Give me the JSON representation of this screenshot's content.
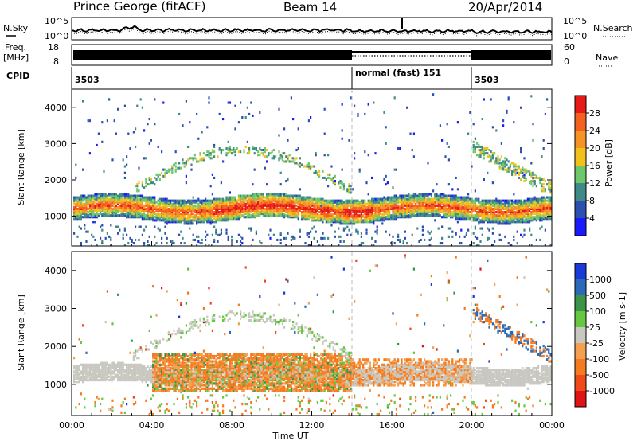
{
  "header": {
    "station": "Prince George (fitACF)",
    "beam": "Beam 14",
    "date": "20/Apr/2014"
  },
  "noise_panel": {
    "left_label": "N.Sky",
    "right_label": "N.Search",
    "left_ticks": [
      "10^5",
      "10^0"
    ],
    "right_ticks": [
      "10^5",
      "10^0"
    ]
  },
  "freq_panel": {
    "left_label_1": "Freq.",
    "left_label_2": "[MHz]",
    "left_ticks": [
      "18",
      "8"
    ],
    "right_label": "Nave",
    "right_ticks": [
      "60",
      "0"
    ]
  },
  "cpid": {
    "label": "CPID",
    "segments": [
      {
        "start_hour": 0,
        "label": "3503"
      },
      {
        "start_hour": 14,
        "label": "normal (fast) 151"
      },
      {
        "start_hour": 20,
        "label": "3503"
      }
    ]
  },
  "time_axis": {
    "label": "Time UT",
    "range_hours": [
      0,
      24
    ],
    "ticks": [
      "00:00",
      "04:00",
      "08:00",
      "12:00",
      "16:00",
      "20:00",
      "00:00"
    ]
  },
  "chart_data": [
    {
      "type": "heatmap",
      "name": "power-panel",
      "ylabel": "Slant Range [km]",
      "ylim": [
        180,
        4500
      ],
      "yticks": [
        "1000",
        "2000",
        "3000",
        "4000"
      ],
      "colorbar": {
        "label": "Power [dB]",
        "range": [
          0,
          32
        ],
        "ticks": [
          "4",
          "8",
          "12",
          "16",
          "20",
          "24",
          "28"
        ],
        "colors": [
          "#1a1aff",
          "#2c4fb2",
          "#3f8a86",
          "#6ec86a",
          "#f2c21a",
          "#f59324",
          "#f4601e",
          "#e81919"
        ]
      },
      "features": [
        {
          "region": "main-band",
          "time_hours": [
            0,
            24
          ],
          "range_km": [
            850,
            1500
          ],
          "level": "strong"
        },
        {
          "region": "upper-arc",
          "time_hours": [
            3,
            14
          ],
          "range_km": [
            1500,
            2900
          ],
          "level": "weak"
        },
        {
          "region": "post-20h-arc",
          "time_hours": [
            20,
            24
          ],
          "range_km": [
            1500,
            3000
          ],
          "level": "moderate"
        }
      ]
    },
    {
      "type": "heatmap",
      "name": "velocity-panel",
      "ylabel": "Slant Range [km]",
      "ylim": [
        180,
        4500
      ],
      "yticks": [
        "1000",
        "2000",
        "3000",
        "4000"
      ],
      "colorbar": {
        "label": "Velocity [m s-1]",
        "ticks": [
          "1000",
          "500",
          "100",
          "25",
          "-25",
          "-100",
          "-500",
          "-1000"
        ],
        "colors": [
          "#1a3ad9",
          "#2a6ab8",
          "#3d9448",
          "#66c840",
          "#c8c8c0",
          "#f5a050",
          "#f57b20",
          "#f04a1a",
          "#e01414"
        ]
      },
      "features": [
        {
          "region": "ground-scatter-band",
          "time_hours": [
            0,
            24
          ],
          "range_km": [
            1000,
            1500
          ],
          "velocity": "near-zero"
        },
        {
          "region": "negative-velocity-block",
          "time_hours": [
            4,
            14
          ],
          "range_km": [
            800,
            1800
          ],
          "velocity": "-100 to -500"
        }
      ]
    }
  ]
}
